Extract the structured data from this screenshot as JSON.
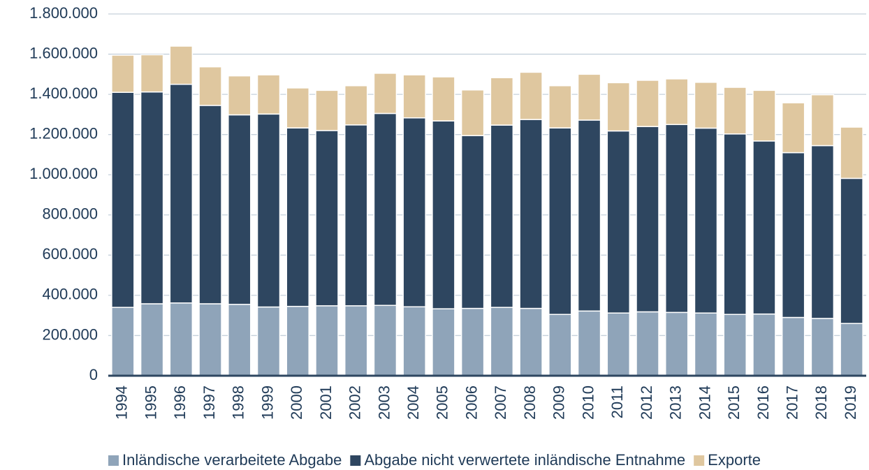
{
  "chart_data": {
    "type": "bar",
    "stacked": true,
    "categories": [
      "1994",
      "1995",
      "1996",
      "1997",
      "1998",
      "1999",
      "2000",
      "2001",
      "2002",
      "2003",
      "2004",
      "2005",
      "2006",
      "2007",
      "2008",
      "2009",
      "2010",
      "2011",
      "2012",
      "2013",
      "2014",
      "2015",
      "2016",
      "2017",
      "2018",
      "2019"
    ],
    "series": [
      {
        "name": "Inländische verarbeitete Abgabe",
        "color": "#8fa4b9",
        "values": [
          340000,
          358000,
          362000,
          358000,
          355000,
          342000,
          345000,
          348000,
          348000,
          350000,
          343000,
          333000,
          335000,
          340000,
          335000,
          305000,
          322000,
          312000,
          318000,
          315000,
          312000,
          305000,
          307000,
          290000,
          285000,
          260000
        ]
      },
      {
        "name": "Abgabe nicht verwertete inländische Entnahme",
        "color": "#2e4660",
        "values": [
          1070000,
          1054000,
          1088000,
          987000,
          943000,
          960000,
          888000,
          872000,
          900000,
          955000,
          940000,
          935000,
          860000,
          907000,
          940000,
          928000,
          950000,
          906000,
          922000,
          935000,
          920000,
          898000,
          861000,
          820000,
          860000,
          722000
        ]
      },
      {
        "name": "Exporte",
        "color": "#dfc79f",
        "values": [
          185000,
          185000,
          190000,
          192000,
          194000,
          195000,
          199000,
          200000,
          195000,
          200000,
          214000,
          219000,
          227000,
          236000,
          235000,
          210000,
          228000,
          240000,
          230000,
          227000,
          228000,
          232000,
          252000,
          248000,
          253000,
          255000
        ]
      }
    ],
    "ylim": [
      0,
      1800000
    ],
    "yticks": [
      0,
      {
        "value": 200000,
        "label": "200.000"
      },
      {
        "value": 400000,
        "label": "400.000"
      },
      {
        "value": 600000,
        "label": "600.000"
      },
      {
        "value": 800000,
        "label": "800.000"
      },
      {
        "value": 1000000,
        "label": "1.000.000"
      },
      {
        "value": 1200000,
        "label": "1.200.000"
      },
      {
        "value": 1400000,
        "label": "1.400.000"
      },
      {
        "value": 1600000,
        "label": "1.600.000"
      },
      {
        "value": 1800000,
        "label": "1.800.000"
      }
    ],
    "grid": true,
    "legend": "bottom"
  }
}
